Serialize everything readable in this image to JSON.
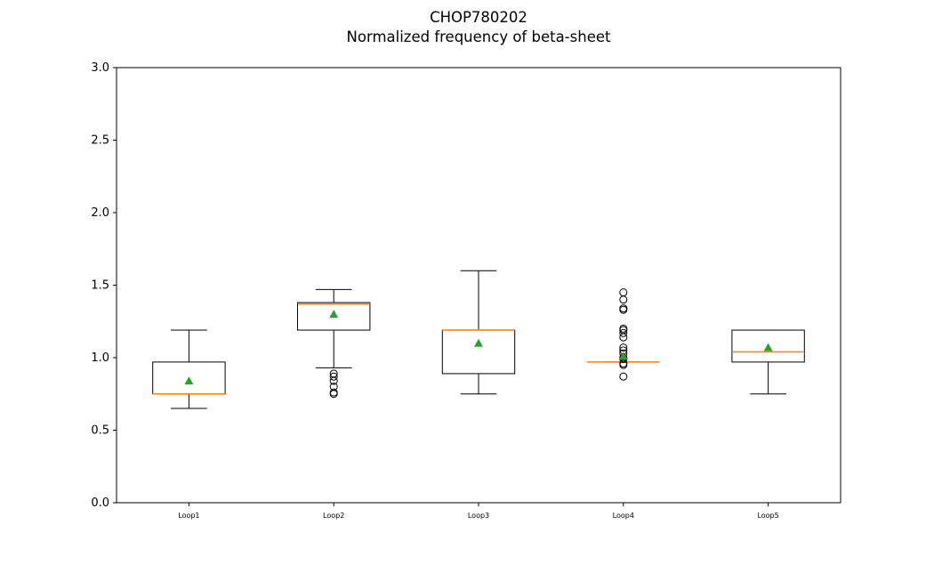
{
  "chart_data": {
    "type": "box",
    "title": "CHOP780202",
    "subtitle": "Normalized frequency of beta-sheet",
    "xlabel": "",
    "ylabel": "",
    "ylim": [
      0,
      3.0
    ],
    "yticks": [
      "0.0",
      "0.5",
      "1.0",
      "1.5",
      "2.0",
      "2.5",
      "3.0"
    ],
    "categories": [
      "Loop1",
      "Loop2",
      "Loop3",
      "Loop4",
      "Loop5"
    ],
    "boxes": [
      {
        "label": "Loop1",
        "whisker_low": 0.65,
        "q1": 0.75,
        "median": 0.75,
        "q3": 0.97,
        "whisker_high": 1.19,
        "mean": 0.84,
        "outliers": []
      },
      {
        "label": "Loop2",
        "whisker_low": 0.93,
        "q1": 1.19,
        "median": 1.37,
        "q3": 1.38,
        "whisker_high": 1.47,
        "mean": 1.3,
        "outliers": [
          0.75,
          0.76,
          0.8,
          0.84,
          0.87,
          0.89
        ]
      },
      {
        "label": "Loop3",
        "whisker_low": 0.75,
        "q1": 0.89,
        "median": 1.19,
        "q3": 1.19,
        "whisker_high": 1.6,
        "mean": 1.1,
        "outliers": []
      },
      {
        "label": "Loop4",
        "whisker_low": 0.97,
        "q1": 0.97,
        "median": 0.97,
        "q3": 0.97,
        "whisker_high": 0.97,
        "mean": 1.01,
        "outliers": [
          0.87,
          0.95,
          0.96,
          0.99,
          1.0,
          1.03,
          1.05,
          1.07,
          1.14,
          1.17,
          1.19,
          1.2,
          1.33,
          1.34,
          1.4,
          1.45
        ]
      },
      {
        "label": "Loop5",
        "whisker_low": 0.75,
        "q1": 0.97,
        "median": 1.04,
        "q3": 1.19,
        "whisker_high": 1.19,
        "mean": 1.07,
        "outliers": []
      }
    ],
    "colors": {
      "box": "#000000",
      "median": "#ff7f0e",
      "mean": "#2ca02c",
      "outlier": "#000000"
    },
    "grid": false
  }
}
